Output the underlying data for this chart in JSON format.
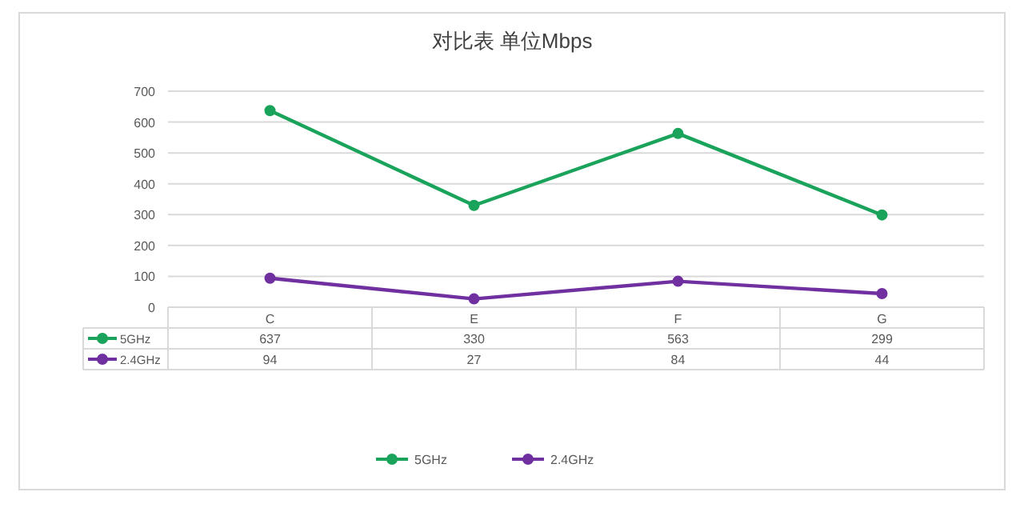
{
  "chart_data": {
    "type": "line",
    "title": "对比表 单位Mbps",
    "categories": [
      "C",
      "E",
      "F",
      "G"
    ],
    "series": [
      {
        "name": "5GHz",
        "color": "#1aa35a",
        "values": [
          637,
          330,
          563,
          299
        ]
      },
      {
        "name": "2.4GHz",
        "color": "#7030a0",
        "values": [
          94,
          27,
          84,
          44
        ]
      }
    ],
    "ylim": [
      0,
      700
    ],
    "yticks": [
      0,
      100,
      200,
      300,
      400,
      500,
      600,
      700
    ],
    "grid": "y",
    "legend": "bottom",
    "marker": "circle",
    "data_labels": true
  }
}
